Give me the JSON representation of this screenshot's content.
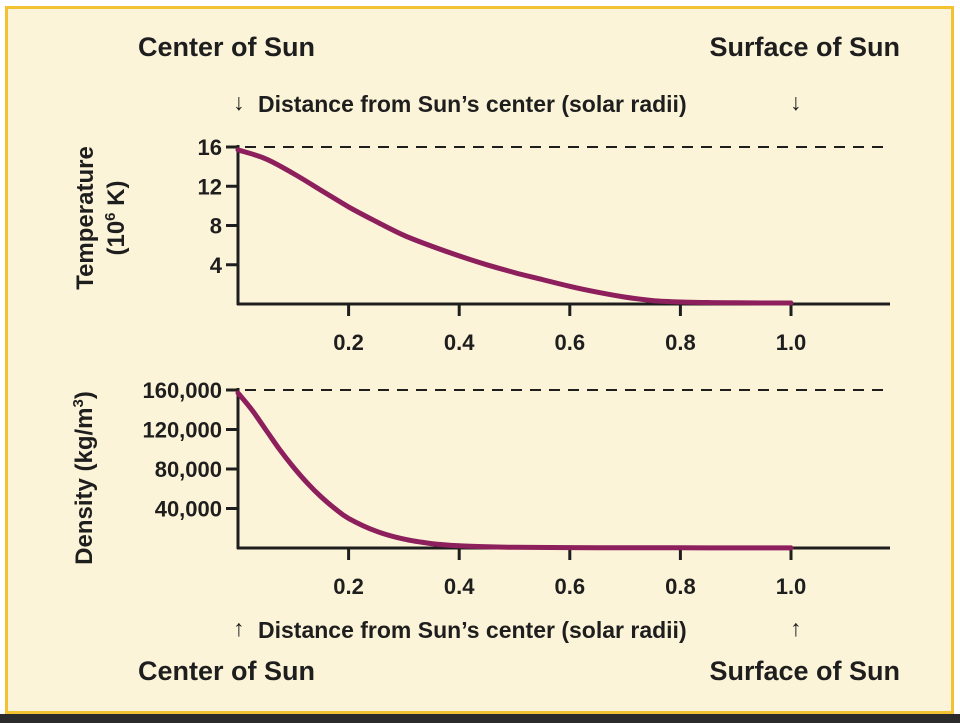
{
  "labels": {
    "center_top": "Center of Sun",
    "surface_top": "Surface of Sun",
    "center_bottom": "Center of Sun",
    "surface_bottom": "Surface of Sun",
    "distance_top": "Distance from Sun’s center (solar radii)",
    "distance_bottom": "Distance from Sun’s center (solar radii)",
    "arrow_down": "↓",
    "arrow_up": "↑"
  },
  "colors": {
    "background": "#fcf4d8",
    "border": "#f3c233",
    "curve": "#8c1f5c",
    "axis": "#1e1e1e"
  },
  "chart_data": [
    {
      "type": "line",
      "ylabel_line1": "Temperature",
      "ylabel_line2_prefix": "(10",
      "ylabel_line2_sup": "6",
      "ylabel_line2_suffix": " K)",
      "xlabel": "Distance from Sun’s center (solar radii)",
      "xlim": [
        0,
        1.18
      ],
      "ylim": [
        0,
        16
      ],
      "x_ticks": [
        "0.2",
        "0.4",
        "0.6",
        "0.8",
        "1.0"
      ],
      "x_tick_values": [
        0.2,
        0.4,
        0.6,
        0.8,
        1.0
      ],
      "y_ticks": [
        "16",
        "12",
        "8",
        "4"
      ],
      "y_tick_values": [
        16,
        12,
        8,
        4
      ],
      "dashed_reference": 16,
      "series": [
        {
          "x": [
            0.0,
            0.05,
            0.1,
            0.15,
            0.2,
            0.25,
            0.3,
            0.35,
            0.4,
            0.45,
            0.5,
            0.55,
            0.6,
            0.65,
            0.7,
            0.75,
            0.8,
            0.85,
            0.9,
            0.95,
            1.0
          ],
          "values": [
            15.7,
            14.8,
            13.3,
            11.6,
            9.9,
            8.4,
            7.0,
            5.9,
            4.9,
            4.0,
            3.2,
            2.5,
            1.8,
            1.2,
            0.7,
            0.35,
            0.2,
            0.15,
            0.12,
            0.1,
            0.1
          ]
        }
      ]
    },
    {
      "type": "line",
      "ylabel_prefix": "Density (kg/m",
      "ylabel_sup": "3",
      "ylabel_suffix": ")",
      "xlabel": "Distance from Sun’s center (solar radii)",
      "xlim": [
        0,
        1.18
      ],
      "ylim": [
        0,
        160000
      ],
      "x_ticks": [
        "0.2",
        "0.4",
        "0.6",
        "0.8",
        "1.0"
      ],
      "x_tick_values": [
        0.2,
        0.4,
        0.6,
        0.8,
        1.0
      ],
      "y_ticks": [
        "160,000",
        "120,000",
        "80,000",
        "40,000"
      ],
      "y_tick_values": [
        160000,
        120000,
        80000,
        40000
      ],
      "dashed_reference": 160000,
      "series": [
        {
          "x": [
            0.0,
            0.025,
            0.05,
            0.075,
            0.1,
            0.125,
            0.15,
            0.175,
            0.2,
            0.25,
            0.3,
            0.35,
            0.4,
            0.45,
            0.5,
            0.6,
            0.7,
            0.8,
            0.9,
            1.0
          ],
          "values": [
            157000,
            140000,
            120000,
            100000,
            82000,
            66000,
            52000,
            40000,
            30000,
            17000,
            9000,
            4500,
            2200,
            1200,
            700,
            400,
            300,
            200,
            150,
            100
          ]
        }
      ]
    }
  ]
}
